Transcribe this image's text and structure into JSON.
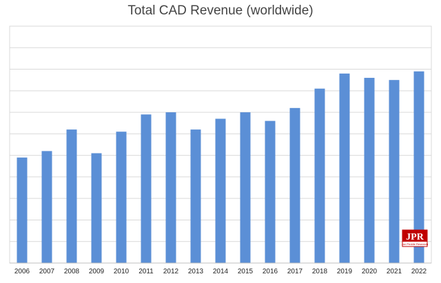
{
  "chart_data": {
    "type": "bar",
    "title": "Total CAD Revenue (worldwide)",
    "xlabel": "",
    "ylabel": "",
    "categories": [
      "2006",
      "2007",
      "2008",
      "2009",
      "2010",
      "2011",
      "2012",
      "2013",
      "2014",
      "2015",
      "2016",
      "2017",
      "2018",
      "2019",
      "2020",
      "2021",
      "2022"
    ],
    "values": [
      4.9,
      5.2,
      6.2,
      5.1,
      6.1,
      6.9,
      7.0,
      6.2,
      6.7,
      7.0,
      6.6,
      7.2,
      8.1,
      8.8,
      8.6,
      8.5,
      8.9
    ],
    "ylim": [
      0,
      11
    ],
    "y_gridlines": 11,
    "y_tick_labels_shown": false,
    "grid": true,
    "bar_color": "#5B8FD6",
    "grid_color": "#D9D9D9"
  },
  "logo": {
    "text": "JPR",
    "subtext": "Jon Peddie Research",
    "color": "#C00000"
  }
}
